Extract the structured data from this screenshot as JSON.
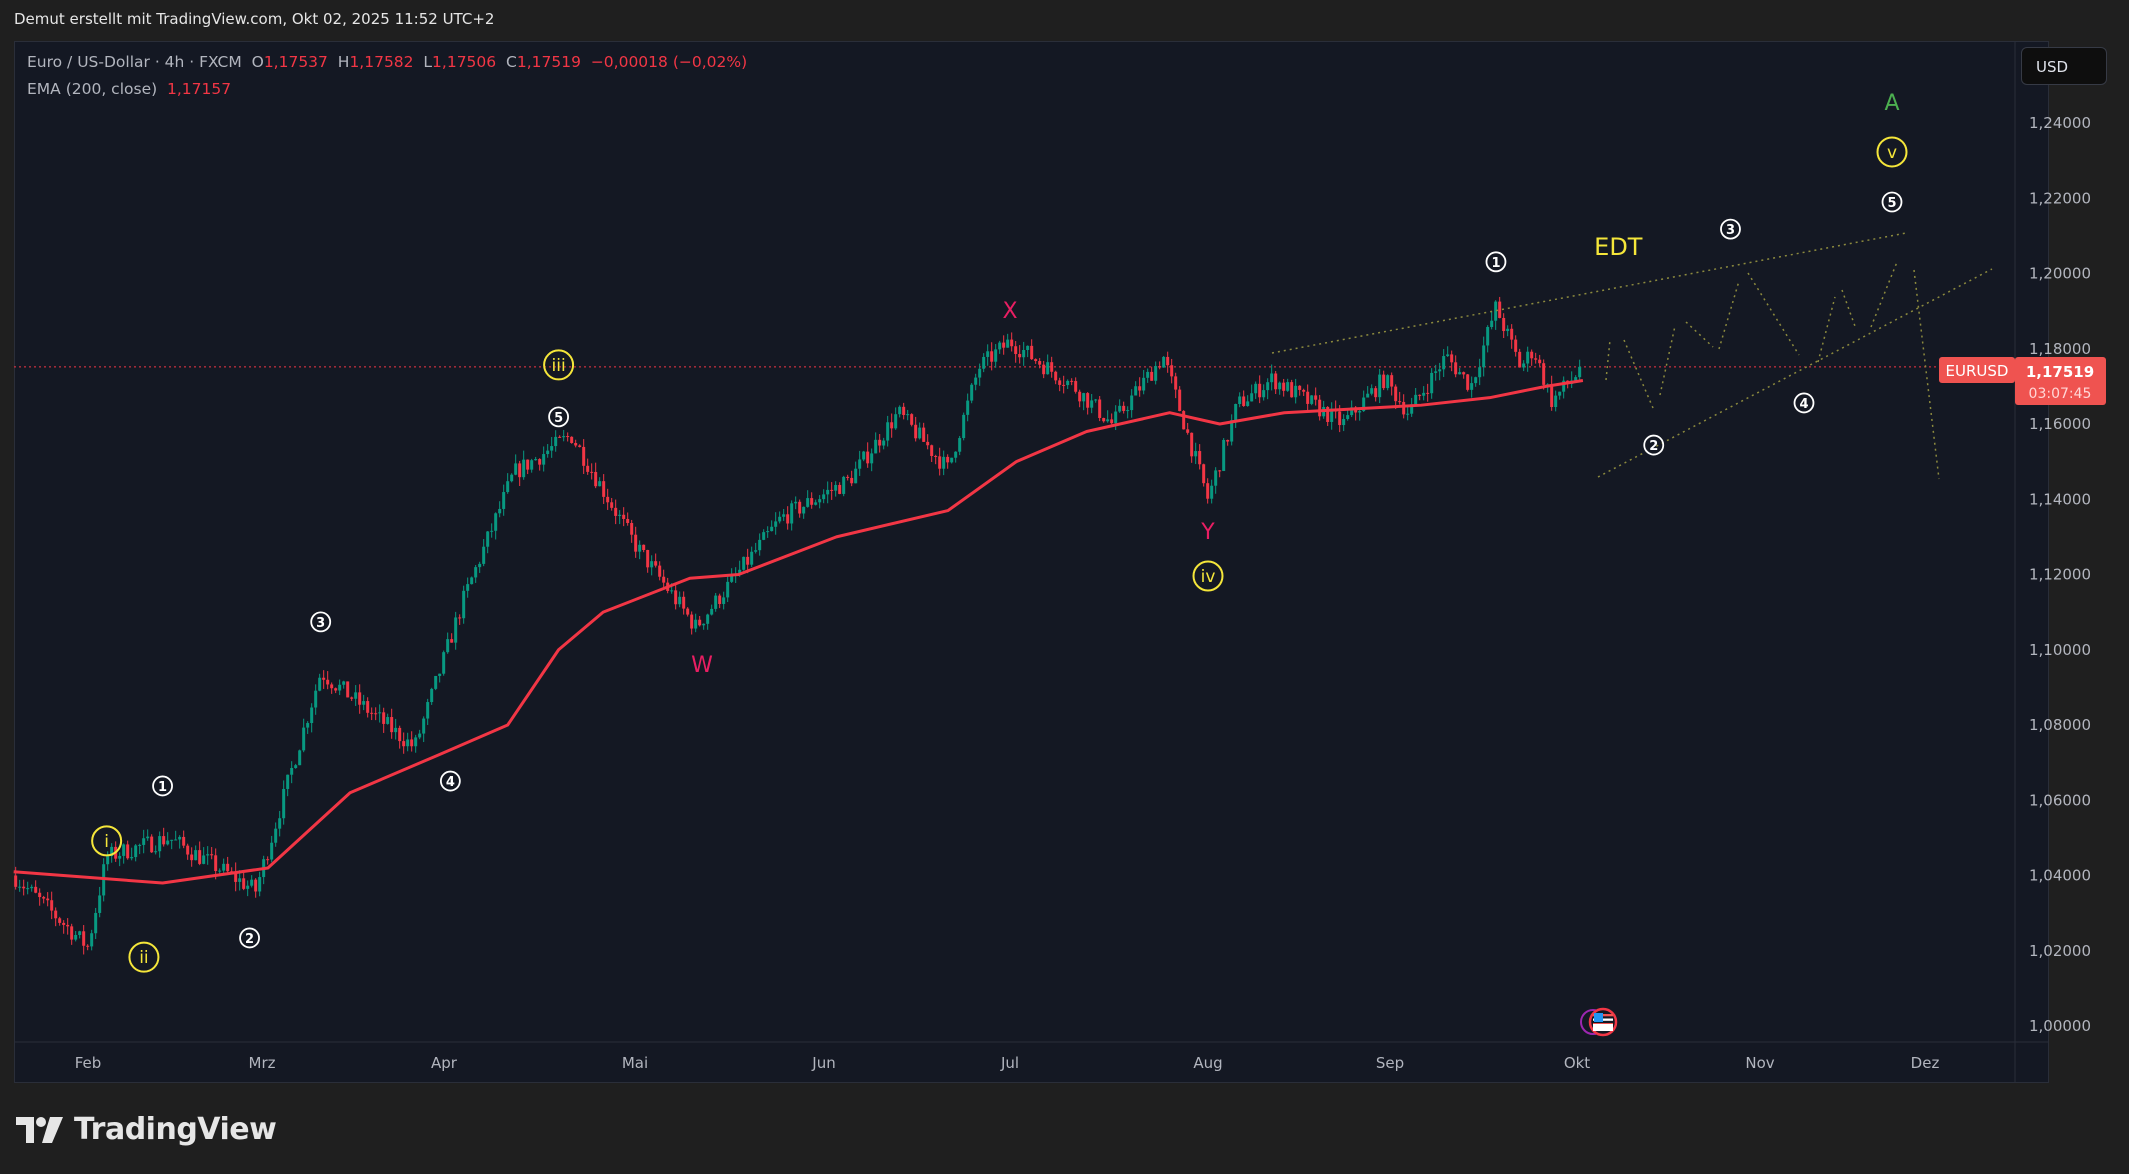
{
  "credit": "Demut erstellt mit TradingView.com, Okt 02, 2025 11:52 UTC+2",
  "legend": {
    "symbol": "Euro / US-Dollar · 4h · FXCM",
    "o_label": "O",
    "open": "1,17537",
    "h_label": "H",
    "high": "1,17582",
    "l_label": "L",
    "low": "1,17506",
    "c_label": "C",
    "close": "1,17519",
    "change": "−0,00018 (−0,02%)",
    "ema_label": "EMA (200, close)",
    "ema_value": "1,17157"
  },
  "currency_button": "USD",
  "symbol_tag": "EURUSD",
  "last_price": "1,17519",
  "countdown": "03:07:45",
  "logo_text": "TradingView",
  "colors": {
    "up": "#089981",
    "down": "#f23645",
    "ema": "#f23645",
    "wave_minor": "#ffffff",
    "wave_yellow": "#f5e63a",
    "wave_pink": "#e91e63",
    "wave_green": "#4caf50",
    "projection": "#8c8a3e"
  },
  "chart_data": {
    "type": "candlestick",
    "timeframe": "4h",
    "ylim": [
      1.0,
      1.25
    ],
    "y_ticks": [
      "1,00000",
      "1,02000",
      "1,04000",
      "1,06000",
      "1,08000",
      "1,10000",
      "1,12000",
      "1,14000",
      "1,16000",
      "1,18000",
      "1,20000",
      "1,22000",
      "1,24000"
    ],
    "y_tick_values": [
      1.0,
      1.02,
      1.04,
      1.06,
      1.08,
      1.1,
      1.12,
      1.14,
      1.16,
      1.18,
      1.2,
      1.22,
      1.24
    ],
    "x_ticks": [
      {
        "label": "Feb",
        "date": "2025-02-01"
      },
      {
        "label": "Mrz",
        "date": "2025-03-01"
      },
      {
        "label": "Apr",
        "date": "2025-04-01"
      },
      {
        "label": "Mai",
        "date": "2025-05-01"
      },
      {
        "label": "Jun",
        "date": "2025-06-01"
      },
      {
        "label": "Jul",
        "date": "2025-07-01"
      },
      {
        "label": "Aug",
        "date": "2025-08-01"
      },
      {
        "label": "Sep",
        "date": "2025-09-01"
      },
      {
        "label": "Okt",
        "date": "2025-10-01"
      },
      {
        "label": "Nov",
        "date": "2025-11-01"
      },
      {
        "label": "Dez",
        "date": "2025-12-01"
      }
    ],
    "price_path": [
      [
        "2025-01-20",
        1.04
      ],
      [
        "2025-02-01",
        1.021
      ],
      [
        "2025-02-04",
        1.045
      ],
      [
        "2025-02-14",
        1.05
      ],
      [
        "2025-02-28",
        1.036
      ],
      [
        "2025-03-11",
        1.094
      ],
      [
        "2025-03-27",
        1.074
      ],
      [
        "2025-04-04",
        1.113
      ],
      [
        "2025-04-12",
        1.147
      ],
      [
        "2025-04-21",
        1.157
      ],
      [
        "2025-05-01",
        1.128
      ],
      [
        "2025-05-11",
        1.106
      ],
      [
        "2025-05-25",
        1.135
      ],
      [
        "2025-06-05",
        1.145
      ],
      [
        "2025-06-13",
        1.163
      ],
      [
        "2025-06-21",
        1.148
      ],
      [
        "2025-06-26",
        1.175
      ],
      [
        "2025-07-01",
        1.182
      ],
      [
        "2025-07-11",
        1.17
      ],
      [
        "2025-07-17",
        1.16
      ],
      [
        "2025-07-25",
        1.178
      ],
      [
        "2025-08-01",
        1.14
      ],
      [
        "2025-08-06",
        1.165
      ],
      [
        "2025-08-12",
        1.172
      ],
      [
        "2025-08-24",
        1.16
      ],
      [
        "2025-08-31",
        1.172
      ],
      [
        "2025-09-04",
        1.163
      ],
      [
        "2025-09-10",
        1.178
      ],
      [
        "2025-09-14",
        1.17
      ],
      [
        "2025-09-18",
        1.191
      ],
      [
        "2025-09-22",
        1.175
      ],
      [
        "2025-09-24",
        1.18
      ],
      [
        "2025-09-27",
        1.166
      ],
      [
        "2025-10-02",
        1.17519
      ]
    ],
    "ema_200": [
      [
        "2025-01-20",
        1.041
      ],
      [
        "2025-02-13",
        1.038
      ],
      [
        "2025-03-02",
        1.042
      ],
      [
        "2025-03-16",
        1.062
      ],
      [
        "2025-03-31",
        1.072
      ],
      [
        "2025-04-11",
        1.08
      ],
      [
        "2025-04-19",
        1.1
      ],
      [
        "2025-04-26",
        1.11
      ],
      [
        "2025-05-10",
        1.119
      ],
      [
        "2025-05-18",
        1.12
      ],
      [
        "2025-06-03",
        1.13
      ],
      [
        "2025-06-21",
        1.137
      ],
      [
        "2025-07-02",
        1.15
      ],
      [
        "2025-07-13",
        1.158
      ],
      [
        "2025-07-26",
        1.163
      ],
      [
        "2025-08-03",
        1.16
      ],
      [
        "2025-08-14",
        1.163
      ],
      [
        "2025-09-06",
        1.165
      ],
      [
        "2025-09-17",
        1.167
      ],
      [
        "2025-09-26",
        1.17
      ],
      [
        "2025-10-02",
        1.17157
      ]
    ],
    "current_price": 1.17519,
    "annotations": [
      {
        "text": "A",
        "date": "2025-11-25",
        "price": 1.2456,
        "style": "green"
      },
      {
        "text": "v",
        "date": "2025-11-25",
        "price": 1.2323,
        "style": "yellow-circle"
      },
      {
        "text": "5",
        "date": "2025-11-25",
        "price": 1.219,
        "style": "white-circle"
      },
      {
        "text": "3",
        "date": "2025-10-27",
        "price": 1.2118,
        "style": "white-circle"
      },
      {
        "text": "EDT",
        "date": "2025-10-08",
        "price": 1.207,
        "style": "yellow"
      },
      {
        "text": "1",
        "date": "2025-09-18",
        "price": 1.2031,
        "style": "white-circle"
      },
      {
        "text": "X",
        "date": "2025-07-01",
        "price": 1.1903,
        "style": "pink"
      },
      {
        "text": "iii",
        "date": "2025-04-19",
        "price": 1.1757,
        "style": "yellow-circle"
      },
      {
        "text": "5",
        "date": "2025-04-19",
        "price": 1.1619,
        "style": "white-circle"
      },
      {
        "text": "3",
        "date": "2025-03-11",
        "price": 1.1074,
        "style": "white-circle"
      },
      {
        "text": "W",
        "date": "2025-05-12",
        "price": 1.0962,
        "style": "pink"
      },
      {
        "text": "Y",
        "date": "2025-08-01",
        "price": 1.1316,
        "style": "pink"
      },
      {
        "text": "iv",
        "date": "2025-08-01",
        "price": 1.1196,
        "style": "yellow-circle"
      },
      {
        "text": "1",
        "date": "2025-02-13",
        "price": 1.0638,
        "style": "white-circle"
      },
      {
        "text": "4",
        "date": "2025-04-02",
        "price": 1.0651,
        "style": "white-circle"
      },
      {
        "text": "i",
        "date": "2025-02-04",
        "price": 1.0492,
        "style": "yellow-circle"
      },
      {
        "text": "2",
        "date": "2025-02-27",
        "price": 1.0234,
        "style": "white-circle"
      },
      {
        "text": "ii",
        "date": "2025-02-10",
        "price": 1.0183,
        "style": "yellow-circle"
      },
      {
        "text": "2",
        "date": "2025-10-14",
        "price": 1.1544,
        "style": "white-circle"
      },
      {
        "text": "4",
        "date": "2025-11-09",
        "price": 1.1656,
        "style": "white-circle"
      }
    ],
    "event_icon": "us-flag-icon",
    "grid": false
  }
}
